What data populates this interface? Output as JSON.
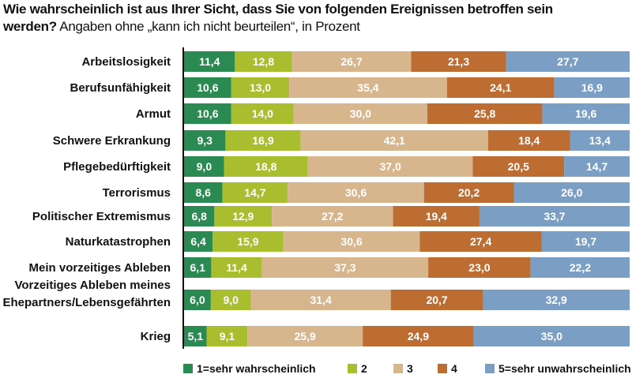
{
  "title_line1": "Wie wahrscheinlich ist aus Ihrer Sicht, dass Sie von folgenden Ereignissen betroffen sein",
  "title_line2_bold": "werden?",
  "title_line2_rest": " Angaben ohne „kann ich nicht beurteilen“, in Prozent",
  "colors": {
    "s1": "#2a8a52",
    "s2": "#a9be2e",
    "s3": "#d7b68e",
    "s4": "#bd6d32",
    "s5": "#7b9fc4",
    "separator": "#111111"
  },
  "chart_data": {
    "type": "bar",
    "orientation": "horizontal",
    "stacked": true,
    "legend_position": "bottom",
    "categories": [
      "Arbeitslosigkeit",
      "Berufsunfähigkeit",
      "Armut",
      "Schwere Erkrankung",
      "Pflegebedürftigkeit",
      "Terrorismus",
      "Politischer Extremismus",
      "Naturkatastrophen",
      "Mein vorzeitiges Ableben",
      "Vorzeitiges Ableben meines Ehepartners/Lebensgefährten",
      "Krieg"
    ],
    "series": [
      {
        "name": "1=sehr wahrscheinlich",
        "values": [
          11.4,
          10.6,
          10.6,
          9.3,
          9.0,
          8.6,
          6.8,
          6.4,
          6.1,
          6.0,
          5.1
        ]
      },
      {
        "name": "2",
        "values": [
          12.8,
          13.0,
          14.0,
          16.9,
          18.8,
          14.7,
          12.9,
          15.9,
          11.4,
          9.0,
          9.1
        ]
      },
      {
        "name": "3",
        "values": [
          26.7,
          35.4,
          30.0,
          42.1,
          37.0,
          30.6,
          27.2,
          30.6,
          37.3,
          31.4,
          25.9
        ]
      },
      {
        "name": "4",
        "values": [
          21.3,
          24.1,
          25.8,
          18.4,
          20.5,
          20.2,
          19.4,
          27.4,
          23.0,
          20.7,
          24.9
        ]
      },
      {
        "name": "5=sehr unwahrscheinlich",
        "values": [
          27.7,
          16.9,
          19.6,
          13.4,
          14.7,
          26.0,
          33.7,
          19.7,
          22.2,
          32.9,
          35.0
        ]
      }
    ],
    "value_labels": [
      [
        "11,4",
        "12,8",
        "26,7",
        "21,3",
        "27,7"
      ],
      [
        "10,6",
        "13,0",
        "35,4",
        "24,1",
        "16,9"
      ],
      [
        "10,6",
        "14,0",
        "30,0",
        "25,8",
        "19,6"
      ],
      [
        "9,3",
        "16,9",
        "42,1",
        "18,4",
        "13,4"
      ],
      [
        "9,0",
        "18,8",
        "37,0",
        "20,5",
        "14,7"
      ],
      [
        "8,6",
        "14,7",
        "30,6",
        "20,2",
        "26,0"
      ],
      [
        "6,8",
        "12,9",
        "27,2",
        "19,4",
        "33,7"
      ],
      [
        "6,4",
        "15,9",
        "30,6",
        "27,4",
        "19,7"
      ],
      [
        "6,1",
        "11,4",
        "37,3",
        "23,0",
        "22,2"
      ],
      [
        "6,0",
        "9,0",
        "31,4",
        "20,7",
        "32,9"
      ],
      [
        "5,1",
        "9,1",
        "25,9",
        "24,9",
        "35,0"
      ]
    ],
    "category_label_lines": {
      "9": [
        "Vorzeitiges Ableben meines",
        "Ehepartners/Lebensgefährten"
      ]
    }
  }
}
